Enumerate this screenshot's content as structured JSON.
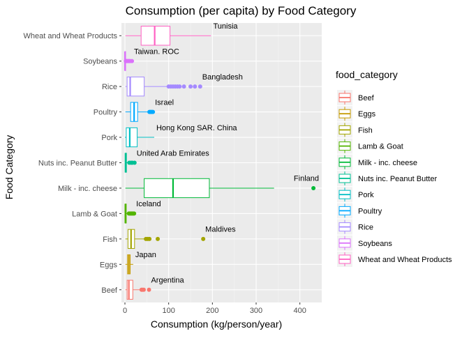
{
  "chart_data": {
    "type": "boxplot",
    "orientation": "horizontal",
    "title": "Consumption (per capita) by Food Category",
    "xlabel": "Consumption (kg/person/year)",
    "ylabel": "Food Category",
    "xlim": [
      -8,
      450
    ],
    "xticks": [
      0,
      100,
      200,
      300,
      400
    ],
    "xtick_labels": [
      "0",
      "100",
      "200",
      "300",
      "400"
    ],
    "grid": true,
    "legend": {
      "title": "food_category",
      "placement": "right"
    },
    "categories": [
      {
        "name": "Wheat and Wheat Products",
        "color": "#FF61C3",
        "min": 1,
        "q1": 37,
        "median": 68,
        "q3": 103,
        "max": 197,
        "outliers": [],
        "label": "Tunisia",
        "label_x": 197
      },
      {
        "name": "Soybeans",
        "color": "#DB72FB",
        "min": 0,
        "q1": 0,
        "median": 0.1,
        "q3": 0.5,
        "max": 1,
        "outliers": [
          2,
          3,
          4,
          6,
          8,
          10,
          12,
          16
        ],
        "label": "Taiwan. ROC",
        "label_x": 16
      },
      {
        "name": "Rice",
        "color": "#A58AFF",
        "min": 1,
        "q1": 5,
        "median": 12,
        "q3": 44,
        "max": 99,
        "outliers": [
          100,
          105,
          110,
          115,
          120,
          125,
          135,
          150,
          160,
          172
        ],
        "label": "Bangladesh",
        "label_x": 172
      },
      {
        "name": "Poultry",
        "color": "#00A9FF",
        "min": 1,
        "q1": 13,
        "median": 21,
        "q3": 29,
        "max": 55,
        "outliers": [
          56,
          58,
          60,
          62,
          64
        ],
        "label": "Israel",
        "label_x": 64
      },
      {
        "name": "Pork",
        "color": "#00BFC4",
        "min": 0,
        "q1": 3,
        "median": 11,
        "q3": 28,
        "max": 67,
        "outliers": [],
        "label": "Hong Kong SAR. China",
        "label_x": 67
      },
      {
        "name": "Nuts inc. Peanut Butter",
        "color": "#00C094",
        "min": 0,
        "q1": 0.5,
        "median": 1.5,
        "q3": 3.5,
        "max": 8,
        "outliers": [
          10,
          14,
          17,
          22
        ],
        "label": "United Arab Emirates",
        "label_x": 22
      },
      {
        "name": "Milk - inc. cheese",
        "color": "#00BA38",
        "min": 1,
        "q1": 44,
        "median": 110,
        "q3": 193,
        "max": 341,
        "outliers": [
          431
        ],
        "label": "Finland",
        "label_x": 431
      },
      {
        "name": "Lamb & Goat",
        "color": "#53B400",
        "min": 0,
        "q1": 0.3,
        "median": 1,
        "q3": 3,
        "max": 7,
        "outliers": [
          9,
          11,
          13,
          15,
          17,
          19,
          21
        ],
        "label": "Iceland",
        "label_x": 21
      },
      {
        "name": "Fish",
        "color": "#A3A500",
        "min": 1,
        "q1": 7,
        "median": 14,
        "q3": 22,
        "max": 44,
        "outliers": [
          48,
          52,
          56,
          75,
          179
        ],
        "label": "Maldives",
        "label_x": 179
      },
      {
        "name": "Eggs",
        "color": "#C49A00",
        "min": 1,
        "q1": 6,
        "median": 9,
        "q3": 12,
        "max": 19,
        "outliers": [],
        "label": "Japan",
        "label_x": 19
      },
      {
        "name": "Beef",
        "color": "#F8766D",
        "min": 1,
        "q1": 5,
        "median": 9,
        "q3": 18,
        "max": 35,
        "outliers": [
          38,
          40,
          43,
          55
        ],
        "label": "Argentina",
        "label_x": 55
      }
    ],
    "legend_entries": [
      "Beef",
      "Eggs",
      "Fish",
      "Lamb & Goat",
      "Milk - inc. cheese",
      "Nuts inc. Peanut Butter",
      "Pork",
      "Poultry",
      "Rice",
      "Soybeans",
      "Wheat and Wheat Products"
    ]
  }
}
